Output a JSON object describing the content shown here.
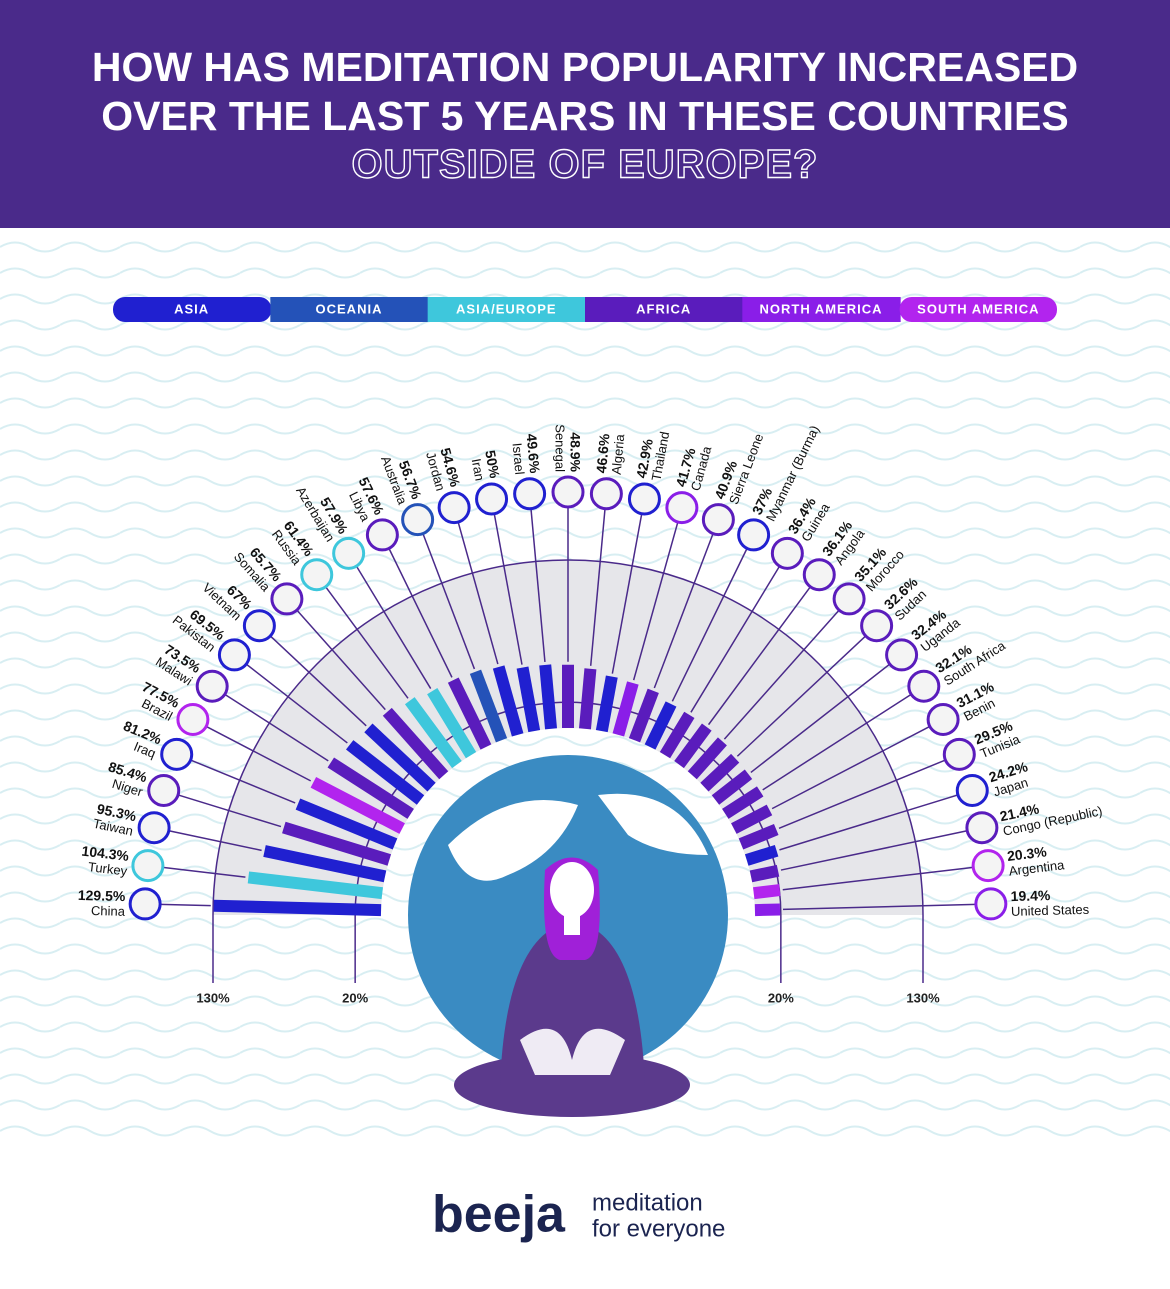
{
  "chart_data": {
    "type": "radial-bar",
    "title": [
      "HOW HAS MEDITATION POPULARITY INCREASED",
      "OVER THE LAST 5 YEARS IN THESE COUNTRIES"
    ],
    "subtitle": "OUTSIDE OF EUROPE?",
    "categories": [
      "China",
      "Turkey",
      "Taiwan",
      "Niger",
      "Iraq",
      "Brazil",
      "Malawi",
      "Pakistan",
      "Vietnam",
      "Somalia",
      "Russia",
      "Azerbaijan",
      "Libya",
      "Australia",
      "Jordan",
      "Iran",
      "Israel",
      "Senegal",
      "Algeria",
      "Thailand",
      "Canada",
      "Sierra Leone",
      "Myanmar (Burma)",
      "Guinea",
      "Angola",
      "Morocco",
      "Sudan",
      "Uganda",
      "South Africa",
      "Benin",
      "Tunisia",
      "Japan",
      "Congo (Republic)",
      "Argentina",
      "United States"
    ],
    "series": [
      {
        "name": "ASIA",
        "color": "#2020d0",
        "values": [
          129.5,
          null,
          95.3,
          null,
          81.2,
          null,
          null,
          69.5,
          67,
          null,
          null,
          null,
          null,
          null,
          54.6,
          50,
          49.6,
          null,
          null,
          42.9,
          null,
          null,
          37,
          null,
          null,
          null,
          null,
          null,
          null,
          null,
          null,
          24.2,
          null,
          null,
          null
        ],
        "value_labels": [
          "129.5%",
          null,
          "95.3%",
          null,
          "81.2%",
          null,
          null,
          "69.5%",
          "67%",
          null,
          null,
          null,
          null,
          null,
          "54.6%",
          "50%",
          "49.6%",
          null,
          null,
          "42.9%",
          null,
          null,
          "37%",
          null,
          null,
          null,
          null,
          null,
          null,
          null,
          null,
          "24.2%",
          null,
          null,
          null
        ]
      },
      {
        "name": "OCEANIA",
        "color": "#2452b8",
        "values": [
          null,
          null,
          null,
          null,
          null,
          null,
          null,
          null,
          null,
          null,
          null,
          null,
          null,
          56.7,
          null,
          null,
          null,
          null,
          null,
          null,
          null,
          null,
          null,
          null,
          null,
          null,
          null,
          null,
          null,
          null,
          null,
          null,
          null,
          null,
          null
        ],
        "value_labels": [
          null,
          null,
          null,
          null,
          null,
          null,
          null,
          null,
          null,
          null,
          null,
          null,
          null,
          "56.7%",
          null,
          null,
          null,
          null,
          null,
          null,
          null,
          null,
          null,
          null,
          null,
          null,
          null,
          null,
          null,
          null,
          null,
          null,
          null,
          null,
          null
        ]
      },
      {
        "name": "ASIA/EUROPE",
        "color": "#3ec7dc",
        "values": [
          null,
          104.3,
          null,
          null,
          null,
          null,
          null,
          null,
          null,
          null,
          61.4,
          57.9,
          null,
          null,
          null,
          null,
          null,
          null,
          null,
          null,
          null,
          null,
          null,
          null,
          null,
          null,
          null,
          null,
          null,
          null,
          null,
          null,
          null,
          null,
          null
        ],
        "value_labels": [
          null,
          "104.3%",
          null,
          null,
          null,
          null,
          null,
          null,
          null,
          null,
          "61.4%",
          "57.9%",
          null,
          null,
          null,
          null,
          null,
          null,
          null,
          null,
          null,
          null,
          null,
          null,
          null,
          null,
          null,
          null,
          null,
          null,
          null,
          null,
          null,
          null,
          null
        ]
      },
      {
        "name": "AFRICA",
        "color": "#5a1cbc",
        "values": [
          null,
          null,
          null,
          85.4,
          null,
          null,
          73.5,
          null,
          null,
          65.7,
          null,
          null,
          57.6,
          null,
          null,
          null,
          null,
          48.9,
          46.6,
          null,
          null,
          40.9,
          null,
          36.4,
          36.1,
          35.1,
          32.6,
          32.4,
          32.1,
          31.1,
          29.5,
          null,
          21.4,
          null,
          null
        ],
        "value_labels": [
          null,
          null,
          null,
          "85.4%",
          null,
          null,
          "73.5%",
          null,
          null,
          "65.7%",
          null,
          null,
          "57.6%",
          null,
          null,
          null,
          null,
          "48.9%",
          "46.6%",
          null,
          null,
          "40.9%",
          null,
          "36.4%",
          "36.1%",
          "35.1%",
          "32.6%",
          "32.4%",
          "32.1%",
          "31.1%",
          "29.5%",
          null,
          "21.4%",
          null,
          null
        ]
      },
      {
        "name": "NORTH AMERICA",
        "color": "#8a1ee8",
        "values": [
          null,
          null,
          null,
          null,
          null,
          null,
          null,
          null,
          null,
          null,
          null,
          null,
          null,
          null,
          null,
          null,
          null,
          null,
          null,
          null,
          41.7,
          null,
          null,
          null,
          null,
          null,
          null,
          null,
          null,
          null,
          null,
          null,
          null,
          null,
          19.4
        ],
        "value_labels": [
          null,
          null,
          null,
          null,
          null,
          null,
          null,
          null,
          null,
          null,
          null,
          null,
          null,
          null,
          null,
          null,
          null,
          null,
          null,
          null,
          "41.7%",
          null,
          null,
          null,
          null,
          null,
          null,
          null,
          null,
          null,
          null,
          null,
          null,
          null,
          "19.4%"
        ]
      },
      {
        "name": "SOUTH AMERICA",
        "color": "#b224ee",
        "values": [
          null,
          null,
          null,
          null,
          null,
          77.5,
          null,
          null,
          null,
          null,
          null,
          null,
          null,
          null,
          null,
          null,
          null,
          null,
          null,
          null,
          null,
          null,
          null,
          null,
          null,
          null,
          null,
          null,
          null,
          null,
          null,
          null,
          null,
          20.3,
          null
        ],
        "value_labels": [
          null,
          null,
          null,
          null,
          null,
          "77.5%",
          null,
          null,
          null,
          null,
          null,
          null,
          null,
          null,
          null,
          null,
          null,
          null,
          null,
          null,
          null,
          null,
          null,
          null,
          null,
          null,
          null,
          null,
          null,
          null,
          null,
          null,
          null,
          "20.3%",
          null
        ]
      }
    ],
    "rlim": [
      0,
      130
    ],
    "rticks": [
      {
        "value": 20,
        "label": "20%"
      },
      {
        "value": 130,
        "label": "130%"
      }
    ]
  },
  "footer": {
    "logo": "beeja",
    "tagline": [
      "meditation",
      "for everyone"
    ]
  }
}
